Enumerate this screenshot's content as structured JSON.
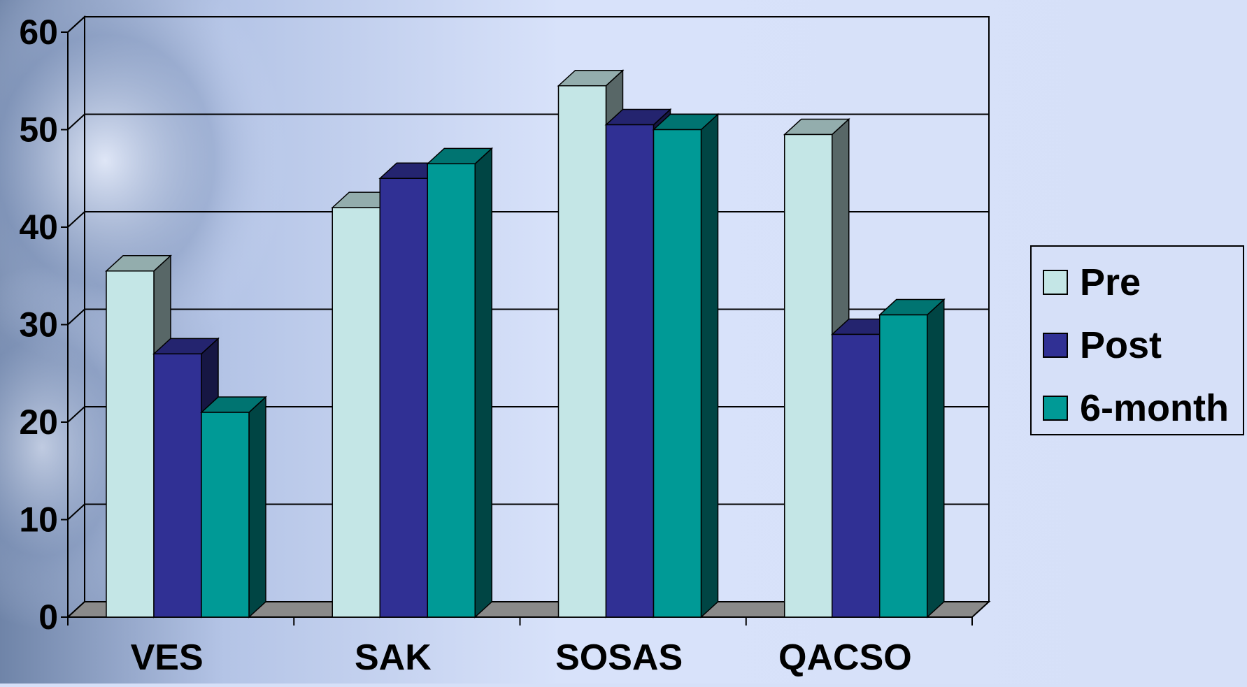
{
  "chart_data": {
    "type": "bar",
    "title": "",
    "xlabel": "",
    "ylabel": "",
    "categories": [
      "VES",
      "SAK",
      "SOSAS",
      "QACSO"
    ],
    "series": [
      {
        "name": "Pre",
        "values": [
          35.5,
          42,
          54.5,
          49.5
        ]
      },
      {
        "name": "Post",
        "values": [
          27,
          45,
          50.5,
          29
        ]
      },
      {
        "name": "6-month",
        "values": [
          21,
          46.5,
          50,
          31
        ]
      }
    ],
    "ylim": [
      0,
      60
    ],
    "yticks": [
      0,
      10,
      20,
      30,
      40,
      50,
      60
    ],
    "grid": true,
    "legend_position": "right",
    "colors": {
      "Pre": "#c4e6e6",
      "Post": "#303094",
      "6-month": "#009a96",
      "floor": "#8a8a8a",
      "background": "#d6e0f8"
    }
  }
}
